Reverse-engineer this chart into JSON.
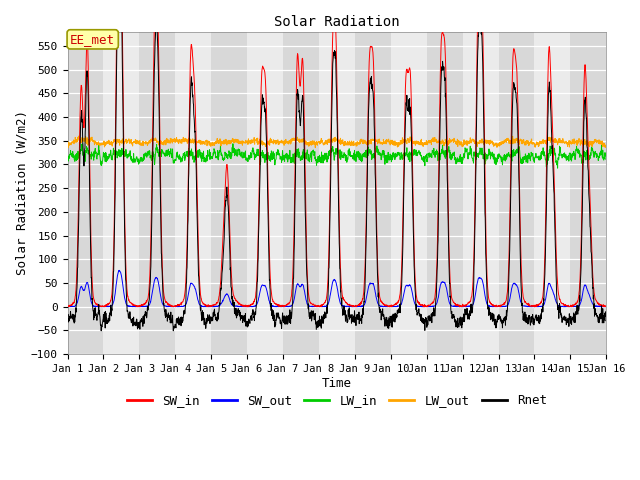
{
  "title": "Solar Radiation",
  "xlabel": "Time",
  "ylabel": "Solar Radiation (W/m2)",
  "ylim": [
    -100,
    580
  ],
  "xlim": [
    0,
    15
  ],
  "yticks": [
    -100,
    -50,
    0,
    50,
    100,
    150,
    200,
    250,
    300,
    350,
    400,
    450,
    500,
    550
  ],
  "xtick_labels": [
    "Jan 1",
    "Jan 2",
    "Jan 3",
    "Jan 4",
    "Jan 5",
    "Jan 6",
    "Jan 7",
    "Jan 8",
    "Jan 9",
    "Jan 10",
    "Jan 11",
    "Jan 12",
    "Jan 13",
    "Jan 14",
    "Jan 15",
    "Jan 16"
  ],
  "colors": {
    "SW_in": "#ff0000",
    "SW_out": "#0000ff",
    "LW_in": "#00cc00",
    "LW_out": "#ffa500",
    "Rnet": "#000000"
  },
  "legend_label": "EE_met",
  "plot_bg_dark": "#d8d8d8",
  "plot_bg_light": "#ebebeb"
}
